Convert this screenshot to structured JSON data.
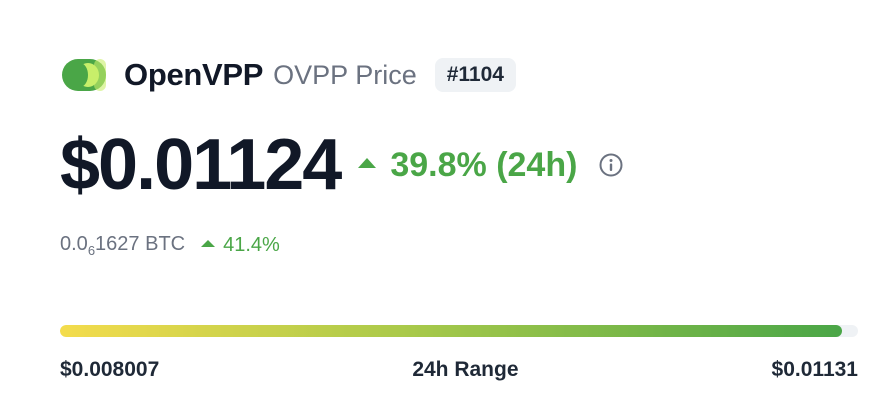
{
  "coin": {
    "name": "OpenVPP",
    "symbol_label": "OVPP Price",
    "rank": "#1104",
    "logo_icon": "openvpp-logo-icon",
    "logo_colors": [
      "#4aa647",
      "#c8ef6a"
    ]
  },
  "price": {
    "usd": "$0.01124",
    "change_24h": "39.8% (24h)",
    "change_direction": "up",
    "positive_color": "#4aa647"
  },
  "btc": {
    "prefix": "0.0",
    "subscript_zeros": "6",
    "digits": "1627",
    "unit": "BTC",
    "change": "41.4%",
    "change_direction": "up"
  },
  "range_24h": {
    "low": "$0.008007",
    "label": "24h Range",
    "high": "$0.01131",
    "current_fraction": 0.98
  }
}
